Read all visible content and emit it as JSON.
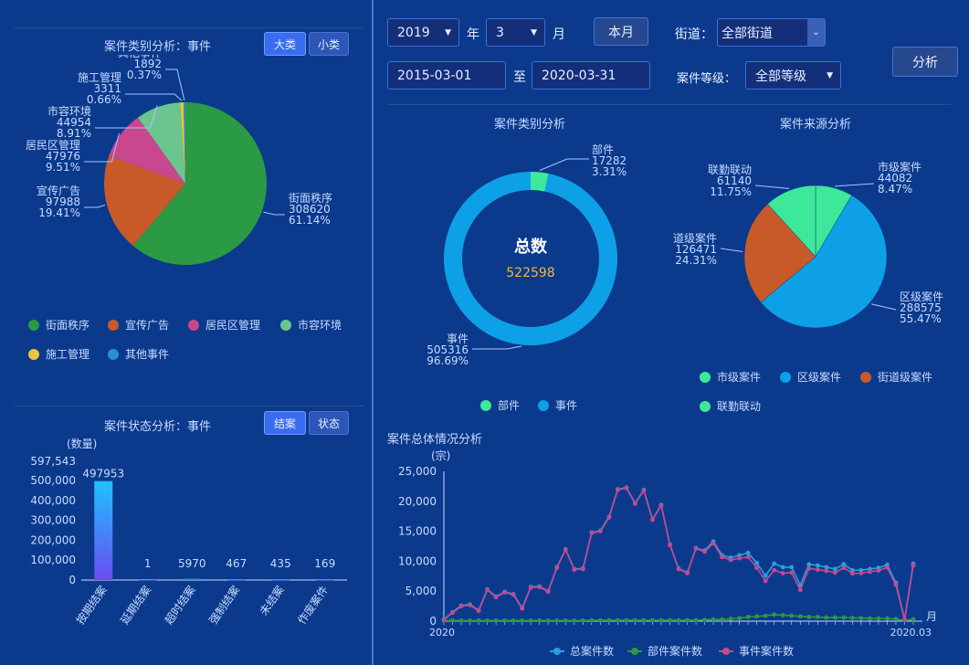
{
  "left": {
    "category": {
      "title": "案件类别分析：事件",
      "btn_big": "大类",
      "btn_small": "小类"
    },
    "status": {
      "title": "案件状态分析：事件",
      "btn_close": "结案",
      "btn_state": "状态"
    }
  },
  "controls": {
    "year": "2019",
    "year_unit": "年",
    "month": "3",
    "month_unit": "月",
    "this_month": "本月",
    "street_label": "街道：",
    "street": "全部街道",
    "analyze": "分析",
    "date_from": "2015-03-01",
    "to": "至",
    "date_to": "2020-03-31",
    "level_label": "案件等级：",
    "level": "全部等级"
  },
  "chart_data": [
    {
      "id": "pie_category_events",
      "type": "pie",
      "title": "案件类别分析：事件",
      "slices": [
        {
          "name": "街面秩序",
          "value": 308620,
          "pct": "61.14%",
          "color": "#2a9a44"
        },
        {
          "name": "宣传广告",
          "value": 97988,
          "pct": "19.41%",
          "color": "#c85a2a"
        },
        {
          "name": "居民区管理",
          "value": 47976,
          "pct": "9.51%",
          "color": "#c8478f"
        },
        {
          "name": "市容环境",
          "value": 44954,
          "pct": "8.91%",
          "color": "#6cc58e"
        },
        {
          "name": "施工管理",
          "value": 3311,
          "pct": "0.66%",
          "color": "#f0c23a"
        },
        {
          "name": "其他事件",
          "value": 1892,
          "pct": "0.37%",
          "color": "#2a8fd0"
        }
      ],
      "legend": [
        "街面秩序",
        "宣传广告",
        "居民区管理",
        "市容环境",
        "施工管理",
        "其他事件"
      ]
    },
    {
      "id": "bar_status",
      "type": "bar",
      "title": "案件状态分析：事件",
      "ylabel": "(数量)",
      "ylim": [
        0,
        597543
      ],
      "yticks": [
        "597,543",
        "500,000",
        "400,000",
        "300,000",
        "200,000",
        "100,000",
        "0"
      ],
      "categories": [
        "按期结案",
        "延期结案",
        "超时结案",
        "强制结案",
        "未结案",
        "作废案件"
      ],
      "values": [
        497953,
        1,
        5970,
        467,
        435,
        169
      ],
      "value_labels": [
        "497953",
        "1",
        "5970",
        "467",
        "435",
        "169"
      ]
    },
    {
      "id": "donut_type",
      "type": "pie",
      "title": "案件类别分析",
      "center_title": "总数",
      "center_value": "522598",
      "slices": [
        {
          "name": "部件",
          "value": 17282,
          "pct": "3.31%",
          "color": "#3ee89a"
        },
        {
          "name": "事件",
          "value": 505316,
          "pct": "96.69%",
          "color": "#0ea0e6"
        }
      ],
      "legend": [
        "部件",
        "事件"
      ]
    },
    {
      "id": "pie_source",
      "type": "pie",
      "title": "案件来源分析",
      "slices": [
        {
          "name": "市级案件",
          "value": 44082,
          "pct": "8.47%",
          "color": "#3ee89a"
        },
        {
          "name": "区级案件",
          "value": 288575,
          "pct": "55.47%",
          "color": "#0ea0e6"
        },
        {
          "name": "道级案件",
          "value": 126471,
          "pct": "24.31%",
          "color": "#c85a2a"
        },
        {
          "name": "联勤联动",
          "value": 61140,
          "pct": "11.75%",
          "color": "#3ee89a"
        }
      ],
      "legend": [
        "市级案件",
        "区级案件",
        "街道级案件",
        "联勤联动"
      ]
    },
    {
      "id": "line_overall",
      "type": "line",
      "title": "案件总体情况分析",
      "ylabel": "(宗)",
      "xlabel": "月",
      "ylim": [
        0,
        25000
      ],
      "yticks": [
        "25,000",
        "20,000",
        "15,000",
        "10,000",
        "5,000",
        "0"
      ],
      "series": [
        {
          "name": "总案件数",
          "color": "#2aa0e0",
          "values": [
            300,
            1500,
            2600,
            2800,
            1800,
            5300,
            4100,
            4900,
            4500,
            2200,
            5700,
            5800,
            5000,
            9000,
            12000,
            8700,
            8800,
            14800,
            15100,
            17400,
            22000,
            22300,
            19700,
            21900,
            17000,
            19400,
            12800,
            8800,
            8100,
            12200,
            11800,
            13300,
            11000,
            10600,
            11000,
            11400,
            9700,
            7600,
            9600,
            9000,
            9000,
            6000,
            9500,
            9300,
            9000,
            8700,
            9500,
            8500,
            8500,
            8700,
            8900,
            9400,
            6400,
            300,
            9600
          ]
        },
        {
          "name": "部件案件数",
          "color": "#2a9a44",
          "values": [
            100,
            100,
            100,
            100,
            100,
            100,
            100,
            100,
            100,
            100,
            100,
            100,
            100,
            100,
            100,
            100,
            100,
            150,
            150,
            150,
            150,
            150,
            150,
            150,
            150,
            150,
            150,
            150,
            150,
            150,
            200,
            300,
            300,
            400,
            500,
            700,
            800,
            900,
            1100,
            1000,
            900,
            800,
            700,
            700,
            600,
            600,
            600,
            550,
            500,
            450,
            450,
            450,
            350,
            100,
            300
          ]
        },
        {
          "name": "事件案件数",
          "color": "#c8478f",
          "values": [
            200,
            1400,
            2500,
            2700,
            1700,
            5200,
            4000,
            4800,
            4400,
            2100,
            5600,
            5700,
            4900,
            8900,
            11900,
            8600,
            8700,
            14700,
            15000,
            17300,
            21900,
            22200,
            19600,
            21800,
            16900,
            19300,
            12700,
            8700,
            8000,
            12100,
            11600,
            13000,
            10700,
            10200,
            10500,
            10700,
            8900,
            6700,
            8500,
            8000,
            8100,
            5200,
            8800,
            8600,
            8400,
            8100,
            8900,
            7950,
            8000,
            8250,
            8450,
            8950,
            6050,
            200,
            9300
          ]
        }
      ],
      "x_first": "2020",
      "x_last": "2020.03"
    }
  ]
}
